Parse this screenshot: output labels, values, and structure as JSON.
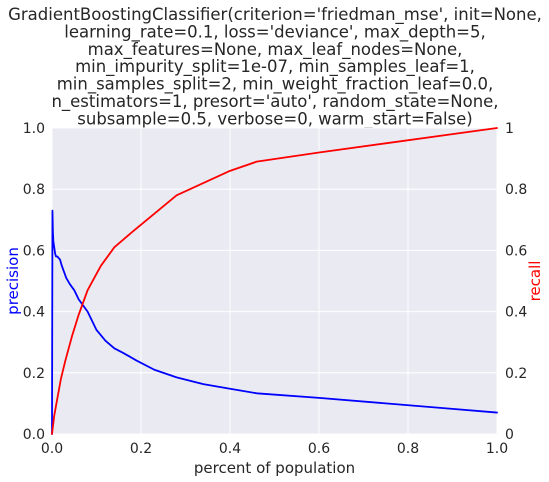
{
  "chart_data": {
    "type": "line",
    "title_lines": [
      "GradientBoostingClassifier(criterion='friedman_mse', init=None,",
      "learning_rate=0.1, loss='deviance', max_depth=5,",
      "max_features=None, max_leaf_nodes=None,",
      "min_impurity_split=1e-07, min_samples_leaf=1,",
      "min_samples_split=2, min_weight_fraction_leaf=0.0,",
      "n_estimators=1, presort='auto', random_state=None,",
      "subsample=0.5, verbose=0, warm_start=False)"
    ],
    "xlabel": "percent of population",
    "ylabel_left": "precision",
    "ylabel_right": "recall",
    "xlim": [
      0.0,
      1.0
    ],
    "ylim_left": [
      0.0,
      1.0
    ],
    "ylim_right": [
      0.0,
      1.0
    ],
    "x_ticks": [
      "0.0",
      "0.2",
      "0.4",
      "0.6",
      "0.8",
      "1.0"
    ],
    "y_ticks_left": [
      "0.0",
      "0.2",
      "0.4",
      "0.6",
      "0.8",
      "1.0"
    ],
    "y_ticks_right": [
      "0",
      "0.2",
      "0.4",
      "0.6",
      "0.8",
      "1"
    ],
    "grid": true,
    "series": [
      {
        "name": "precision",
        "axis": "left",
        "color": "#0000ff",
        "x": [
          0.0,
          0.001,
          0.002,
          0.003,
          0.004,
          0.005,
          0.007,
          0.009,
          0.012,
          0.015,
          0.018,
          0.022,
          0.027,
          0.032,
          0.04,
          0.05,
          0.06,
          0.07,
          0.08,
          0.1,
          0.12,
          0.14,
          0.16,
          0.19,
          0.23,
          0.28,
          0.34,
          0.4,
          0.46,
          0.6,
          0.75,
          0.9,
          1.0
        ],
        "y": [
          0.0,
          0.73,
          0.66,
          0.63,
          0.62,
          0.61,
          0.59,
          0.58,
          0.58,
          0.575,
          0.57,
          0.55,
          0.53,
          0.51,
          0.49,
          0.47,
          0.44,
          0.42,
          0.4,
          0.34,
          0.305,
          0.28,
          0.265,
          0.24,
          0.21,
          0.185,
          0.163,
          0.148,
          0.133,
          0.118,
          0.1,
          0.082,
          0.07
        ]
      },
      {
        "name": "recall",
        "axis": "right",
        "color": "#ff0000",
        "x": [
          0.0,
          0.005,
          0.01,
          0.02,
          0.03,
          0.045,
          0.06,
          0.08,
          0.11,
          0.14,
          0.18,
          0.23,
          0.28,
          0.34,
          0.4,
          0.46,
          0.6,
          0.75,
          0.9,
          1.0
        ],
        "y": [
          0.0,
          0.06,
          0.1,
          0.18,
          0.24,
          0.32,
          0.39,
          0.47,
          0.55,
          0.61,
          0.66,
          0.72,
          0.78,
          0.82,
          0.86,
          0.89,
          0.92,
          0.95,
          0.98,
          1.0
        ]
      }
    ]
  },
  "colors": {
    "plot_background": "#eaeaf2",
    "grid": "#ffffff",
    "text": "#262626",
    "left_label": "#0000ff",
    "right_label": "#ff0000"
  }
}
